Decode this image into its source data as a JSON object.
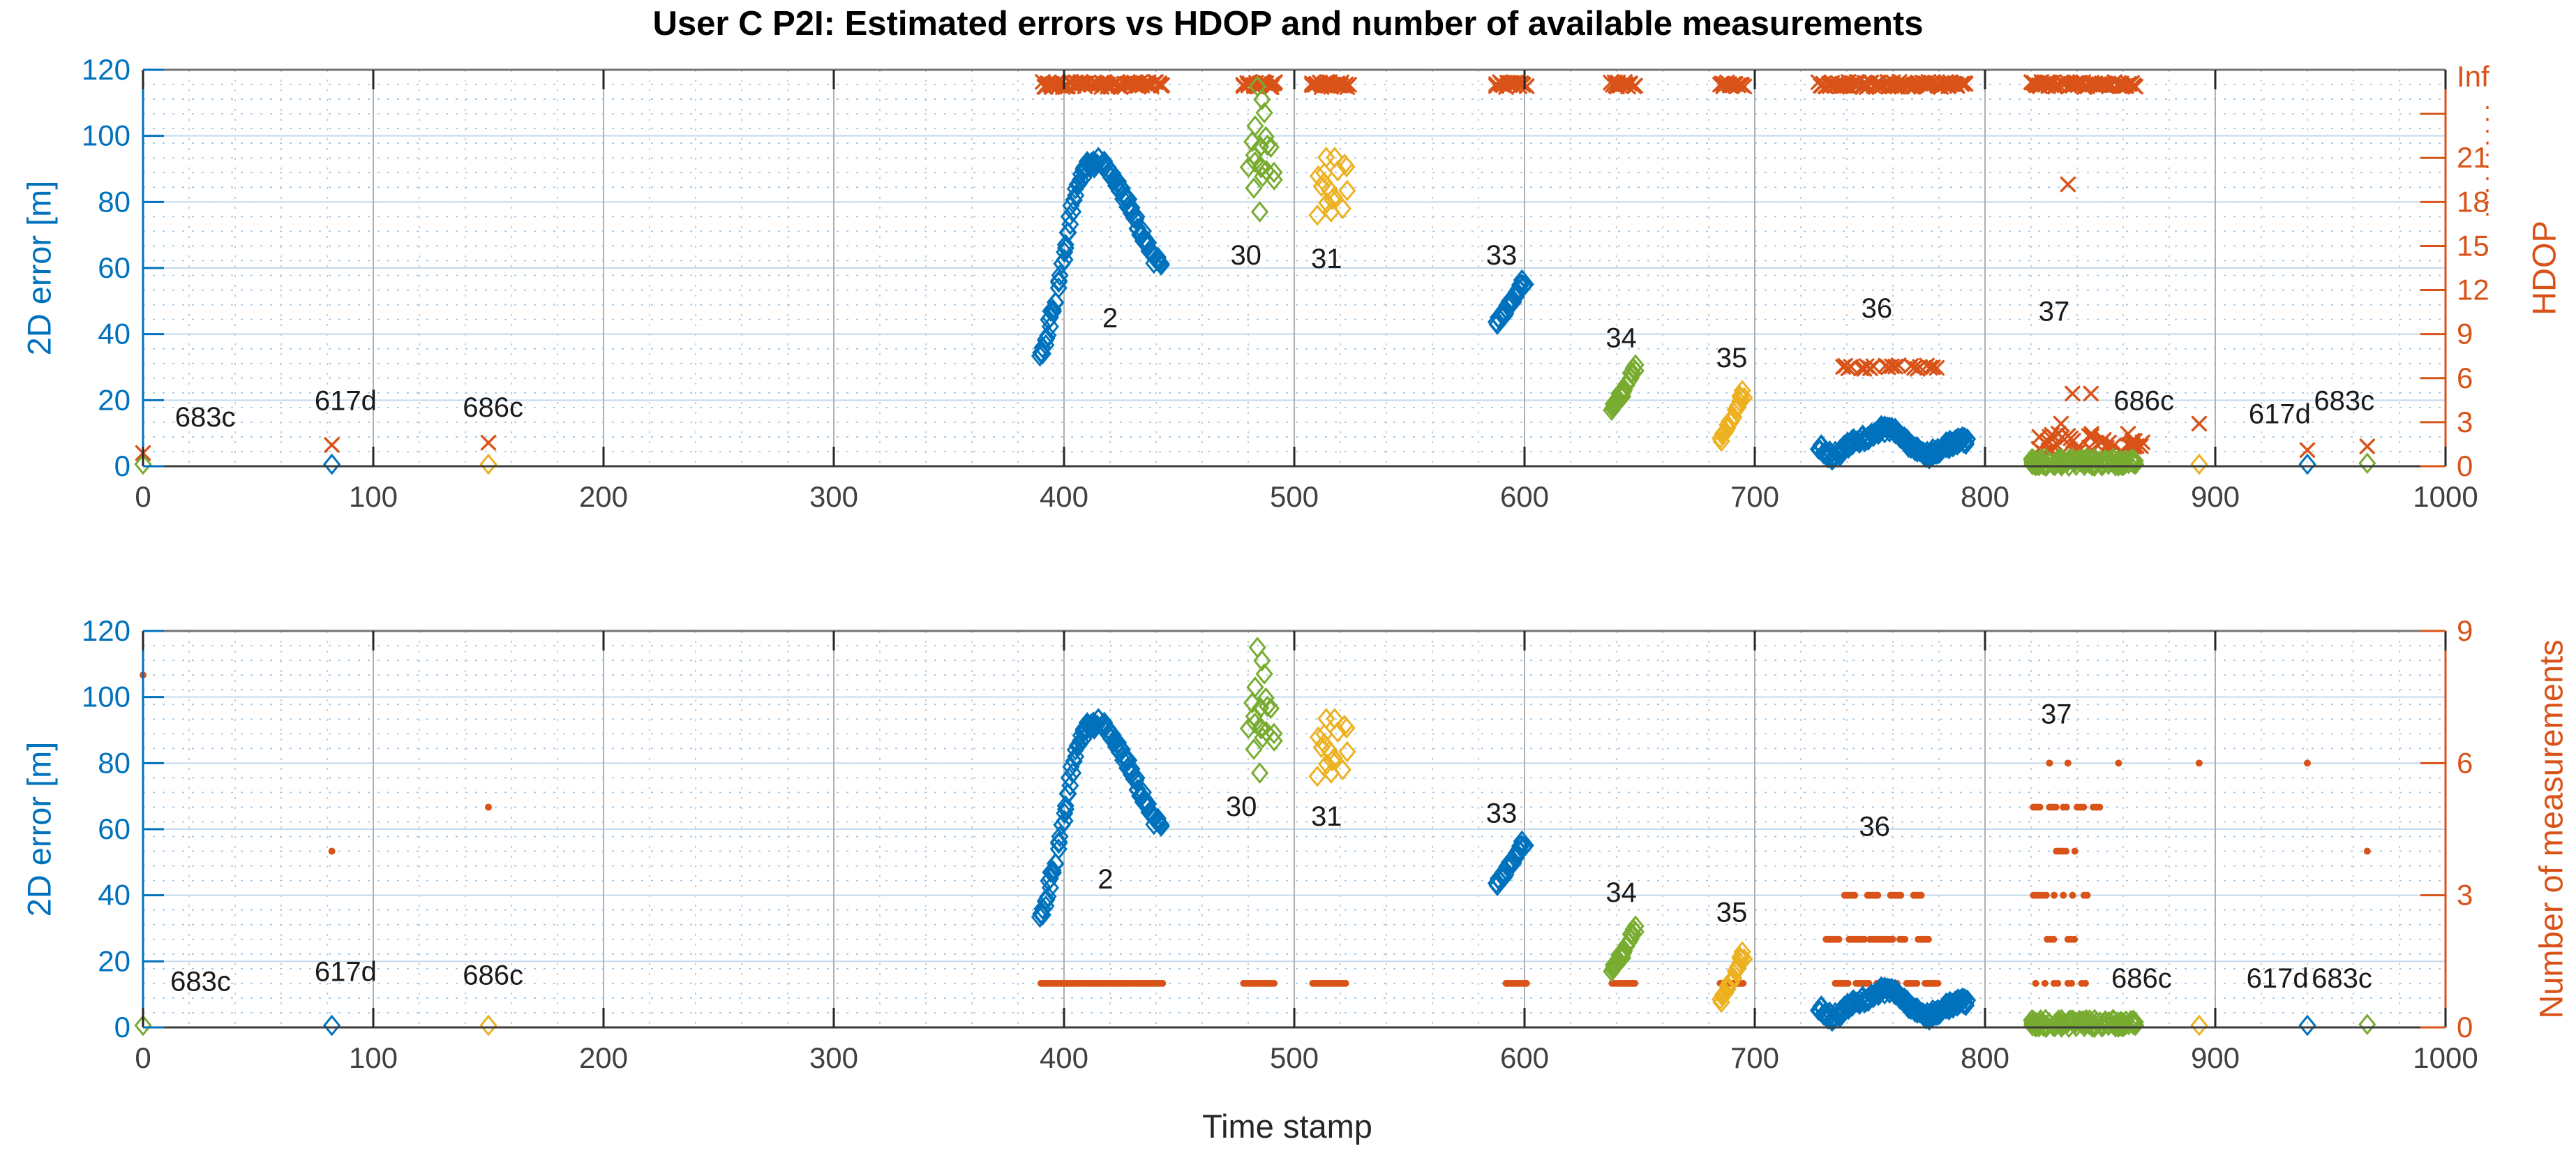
{
  "title": "User C P2I: Estimated errors vs HDOP and number of available measurements",
  "xlabel": "Time stamp",
  "colors": {
    "blue": "#0072BD",
    "orange": "#D95319",
    "green": "#77AC30",
    "yellow": "#EDB120",
    "tick_text": "#404040",
    "annotation_text": "#1a1a1a",
    "spine_top": "#737373",
    "spine_bottom": "#3c3c3c",
    "grid_major_h": "#c3d9ed",
    "grid_major_v": "#b0b0b0",
    "grid_minor_h": "#9fc6e6",
    "grid_minor_v": "#c9c9c9"
  },
  "shared_error_series": [
    {
      "name": "cluster-2",
      "marker": "diamond",
      "color": "blue",
      "kind": "path",
      "step": 0.9,
      "passes": 2,
      "jx": 0.5,
      "jy": 1.7,
      "pts": [
        [
          390,
          33
        ],
        [
          392,
          38
        ],
        [
          394,
          44
        ],
        [
          396,
          50
        ],
        [
          398,
          57
        ],
        [
          400,
          64
        ],
        [
          402,
          72
        ],
        [
          404,
          79
        ],
        [
          406,
          85
        ],
        [
          408,
          89
        ],
        [
          410,
          91
        ],
        [
          413,
          92
        ],
        [
          416,
          92
        ],
        [
          419,
          90
        ],
        [
          422,
          87
        ],
        [
          425,
          83
        ],
        [
          428,
          79
        ],
        [
          431,
          75
        ],
        [
          434,
          70
        ],
        [
          437,
          66
        ],
        [
          440,
          62
        ],
        [
          443,
          60
        ]
      ]
    },
    {
      "name": "cluster-30",
      "marker": "diamond",
      "color": "green",
      "kind": "blob",
      "t": [
        479,
        492
      ],
      "v": [
        84,
        101
      ],
      "n": 15
    },
    {
      "name": "cluster-30-outliers",
      "marker": "diamond",
      "color": "green",
      "kind": "points",
      "pts": [
        [
          484,
          115
        ],
        [
          486,
          111
        ],
        [
          487,
          107
        ],
        [
          483,
          103
        ],
        [
          485,
          77
        ]
      ]
    },
    {
      "name": "cluster-31",
      "marker": "diamond",
      "color": "yellow",
      "kind": "blob",
      "t": [
        509,
        523
      ],
      "v": [
        79,
        94
      ],
      "n": 15
    },
    {
      "name": "cluster-31-outliers",
      "marker": "diamond",
      "color": "yellow",
      "kind": "points",
      "pts": [
        [
          510,
          76
        ],
        [
          516,
          77
        ],
        [
          521,
          78
        ]
      ]
    },
    {
      "name": "cluster-33",
      "marker": "diamond",
      "color": "blue",
      "kind": "path",
      "step": 1.0,
      "passes": 2,
      "jx": 0.5,
      "jy": 1.4,
      "pts": [
        [
          588,
          43
        ],
        [
          591,
          46
        ],
        [
          594,
          50
        ],
        [
          597,
          53
        ],
        [
          600,
          56
        ]
      ]
    },
    {
      "name": "cluster-34",
      "marker": "diamond",
      "color": "green",
      "kind": "path",
      "step": 0.9,
      "passes": 2,
      "jx": 0.5,
      "jy": 1.2,
      "pts": [
        [
          638,
          17
        ],
        [
          641,
          20
        ],
        [
          644,
          24
        ],
        [
          648,
          30
        ]
      ]
    },
    {
      "name": "cluster-35",
      "marker": "diamond",
      "color": "yellow",
      "kind": "path",
      "step": 0.9,
      "passes": 2,
      "jx": 0.5,
      "jy": 1.2,
      "pts": [
        [
          685,
          8
        ],
        [
          688,
          12
        ],
        [
          691,
          16
        ],
        [
          695,
          22
        ]
      ]
    },
    {
      "name": "cluster-36",
      "marker": "diamond",
      "color": "blue",
      "kind": "path",
      "step": 0.8,
      "passes": 2,
      "jx": 0.4,
      "jy": 1.3,
      "pts": [
        [
          728,
          6
        ],
        [
          731,
          4
        ],
        [
          734,
          3
        ],
        [
          737,
          4
        ],
        [
          740,
          6
        ],
        [
          744,
          7.5
        ],
        [
          748,
          8.5
        ],
        [
          752,
          10
        ],
        [
          755,
          11
        ],
        [
          758,
          11.5
        ],
        [
          761,
          10.5
        ],
        [
          764,
          9
        ],
        [
          767,
          7
        ],
        [
          770,
          5.5
        ],
        [
          773,
          4
        ],
        [
          776,
          3.5
        ],
        [
          779,
          4.5
        ],
        [
          782,
          6
        ],
        [
          786,
          7
        ],
        [
          790,
          8
        ],
        [
          792,
          7.5
        ]
      ]
    },
    {
      "name": "cluster-37",
      "marker": "diamond",
      "color": "green",
      "kind": "blob",
      "t": [
        820,
        866
      ],
      "v": [
        0,
        2.4
      ],
      "n": 110
    },
    {
      "name": "singles-green",
      "marker": "diamond",
      "color": "green",
      "kind": "points",
      "pts": [
        [
          0,
          0.6
        ],
        [
          966,
          0.9
        ]
      ]
    },
    {
      "name": "singles-blue",
      "marker": "diamond",
      "color": "blue",
      "kind": "points",
      "pts": [
        [
          82,
          0.6
        ],
        [
          940,
          0.6
        ]
      ]
    },
    {
      "name": "singles-yellow",
      "marker": "diamond",
      "color": "yellow",
      "kind": "points",
      "pts": [
        [
          150,
          0.6
        ],
        [
          893,
          0.6
        ]
      ]
    }
  ],
  "chart_data": [
    {
      "id": "top",
      "type": "scatter",
      "ylabel_left": "2D error [m]",
      "ylabel_right": "HDOP",
      "xlim": [
        0,
        1000
      ],
      "ylim_left": [
        0,
        120
      ],
      "ylim_right": [
        0,
        27
      ],
      "grid": true,
      "xticks": [
        0,
        100,
        200,
        300,
        400,
        500,
        600,
        700,
        800,
        900,
        1000
      ],
      "yticks_left": [
        0,
        20,
        40,
        60,
        80,
        100,
        120
      ],
      "yticks_right": [
        0,
        3,
        6,
        9,
        12,
        15,
        18,
        21
      ],
      "yticks_right_unlabeled": [
        24
      ],
      "ytick_right_top_label": "Inf",
      "axis_break": true,
      "annotations": [
        {
          "text": "683c",
          "t": 27,
          "v": 15
        },
        {
          "text": "617d",
          "t": 88,
          "v": 20
        },
        {
          "text": "686c",
          "t": 152,
          "v": 18
        },
        {
          "text": "2",
          "t": 420,
          "v": 45
        },
        {
          "text": "30",
          "t": 479,
          "v": 64
        },
        {
          "text": "31",
          "t": 514,
          "v": 63
        },
        {
          "text": "33",
          "t": 590,
          "v": 64
        },
        {
          "text": "34",
          "t": 642,
          "v": 39
        },
        {
          "text": "35",
          "t": 690,
          "v": 33
        },
        {
          "text": "36",
          "t": 753,
          "v": 48
        },
        {
          "text": "37",
          "t": 830,
          "v": 47
        },
        {
          "text": "686c",
          "t": 869,
          "v": 20
        },
        {
          "text": "617d",
          "t": 928,
          "v": 16
        },
        {
          "text": "683c",
          "t": 956,
          "v": 20
        }
      ],
      "orange_series": [
        {
          "name": "hdop-inf-row",
          "marker": "x",
          "color": "orange",
          "kind": "row",
          "value_label": "Inf",
          "v": 26.0,
          "segments": [
            [
              391,
              444
            ],
            [
              478,
              492
            ],
            [
              508,
              524
            ],
            [
              588,
              601
            ],
            [
              638,
              649
            ],
            [
              685,
              696
            ],
            [
              728,
              792
            ],
            [
              820,
              866
            ]
          ],
          "step": 1.4,
          "passes": 2,
          "jx": 0.7,
          "jy": 0.18
        },
        {
          "name": "hdop-7-row",
          "marker": "x",
          "color": "orange",
          "kind": "row",
          "v": 6.75,
          "segments": [
            [
              738,
              742
            ],
            [
              746,
              752
            ],
            [
              757,
              763
            ],
            [
              768,
              772
            ],
            [
              775,
              779
            ]
          ],
          "step": 1.3,
          "passes": 1,
          "jx": 0.4,
          "jy": 0.12
        },
        {
          "name": "hdop-band-37",
          "marker": "x",
          "color": "orange",
          "kind": "blob",
          "t": [
            822,
            869
          ],
          "v": [
            0.9,
            2.3
          ],
          "n": 42
        },
        {
          "name": "hdop-singles",
          "marker": "x",
          "color": "orange",
          "kind": "points",
          "pts": [
            [
              0,
              0.9
            ],
            [
              82,
              1.45
            ],
            [
              150,
              1.6
            ],
            [
              836,
              19.2
            ],
            [
              833,
              2.9
            ],
            [
              838,
              4.95
            ],
            [
              846,
              4.95
            ],
            [
              893,
              2.9
            ],
            [
              940,
              1.1
            ],
            [
              966,
              1.35
            ]
          ]
        }
      ]
    },
    {
      "id": "bottom",
      "type": "scatter",
      "ylabel_left": "2D error [m]",
      "ylabel_right": "Number of measurements",
      "xlim": [
        0,
        1000
      ],
      "ylim_left": [
        0,
        120
      ],
      "ylim_right": [
        0,
        9
      ],
      "grid": true,
      "xticks": [
        0,
        100,
        200,
        300,
        400,
        500,
        600,
        700,
        800,
        900,
        1000
      ],
      "yticks_left": [
        0,
        20,
        40,
        60,
        80,
        100,
        120
      ],
      "yticks_right": [
        0,
        3,
        6,
        9
      ],
      "yticks_right_unlabeled": [],
      "ytick_right_top_label": null,
      "axis_break": false,
      "annotations": [
        {
          "text": "683c",
          "t": 25,
          "v": 14
        },
        {
          "text": "617d",
          "t": 88,
          "v": 17
        },
        {
          "text": "686c",
          "t": 152,
          "v": 16
        },
        {
          "text": "2",
          "t": 418,
          "v": 45
        },
        {
          "text": "30",
          "t": 477,
          "v": 67
        },
        {
          "text": "31",
          "t": 514,
          "v": 64
        },
        {
          "text": "33",
          "t": 590,
          "v": 65
        },
        {
          "text": "34",
          "t": 642,
          "v": 41
        },
        {
          "text": "35",
          "t": 690,
          "v": 35
        },
        {
          "text": "36",
          "t": 752,
          "v": 61
        },
        {
          "text": "37",
          "t": 831,
          "v": 95
        },
        {
          "text": "686c",
          "t": 868,
          "v": 15
        },
        {
          "text": "617d",
          "t": 927,
          "v": 15
        },
        {
          "text": "683c",
          "t": 955,
          "v": 15
        }
      ],
      "orange_series": [
        {
          "name": "nmeas-singles",
          "marker": "dot",
          "color": "orange",
          "kind": "points",
          "pts": [
            [
              0,
              8
            ],
            [
              82,
              4
            ],
            [
              150,
              5
            ],
            [
              893,
              6
            ],
            [
              940,
              6
            ],
            [
              966,
              4
            ]
          ]
        },
        {
          "name": "nmeas-1-rows",
          "marker": "dot",
          "color": "orange",
          "kind": "row",
          "v": 1,
          "segments": [
            [
              390,
              443
            ],
            [
              478,
              492
            ],
            [
              508,
              523
            ],
            [
              592,
              601
            ],
            [
              638,
              648
            ],
            [
              685,
              696
            ]
          ],
          "step": 1.1,
          "passes": 1,
          "jx": 0,
          "jy": 0
        },
        {
          "name": "nmeas-36-3",
          "marker": "dot",
          "color": "orange",
          "kind": "row",
          "v": 3,
          "segments": [
            [
              739,
              744
            ],
            [
              749,
              754
            ],
            [
              759,
              764
            ],
            [
              769,
              773
            ]
          ],
          "step": 1.1,
          "passes": 1,
          "jx": 0,
          "jy": 0
        },
        {
          "name": "nmeas-36-2",
          "marker": "dot",
          "color": "orange",
          "kind": "row",
          "v": 2,
          "segments": [
            [
              731,
              737
            ],
            [
              741,
              748
            ],
            [
              750,
              760
            ],
            [
              763,
              766
            ],
            [
              771,
              776
            ]
          ],
          "step": 1.1,
          "passes": 1,
          "jx": 0,
          "jy": 0
        },
        {
          "name": "nmeas-36-1",
          "marker": "dot",
          "color": "orange",
          "kind": "row",
          "v": 1,
          "segments": [
            [
              735,
              741
            ],
            [
              744,
              750
            ],
            [
              753,
              762
            ],
            [
              766,
              771
            ],
            [
              774,
              780
            ]
          ],
          "step": 1.1,
          "passes": 1,
          "jx": 0,
          "jy": 0
        },
        {
          "name": "nmeas-37-6",
          "marker": "dot",
          "color": "orange",
          "kind": "points",
          "pts": [
            [
              828,
              6
            ],
            [
              836,
              6
            ],
            [
              858,
              6
            ]
          ]
        },
        {
          "name": "nmeas-37-5",
          "marker": "dot",
          "color": "orange",
          "kind": "row",
          "v": 5,
          "segments": [
            [
              821,
              825
            ],
            [
              828,
              831
            ],
            [
              834,
              836
            ],
            [
              840,
              843
            ],
            [
              847,
              850
            ]
          ],
          "step": 1.4,
          "passes": 1,
          "jx": 0,
          "jy": 0
        },
        {
          "name": "nmeas-37-4",
          "marker": "dot",
          "color": "orange",
          "kind": "row",
          "v": 4,
          "segments": [
            [
              831,
              836
            ],
            [
              839,
              840
            ]
          ],
          "step": 1.4,
          "passes": 1,
          "jx": 0,
          "jy": 0
        },
        {
          "name": "nmeas-37-3",
          "marker": "dot",
          "color": "orange",
          "kind": "row",
          "v": 3,
          "segments": [
            [
              821,
              827
            ],
            [
              830,
              831
            ],
            [
              834,
              835
            ],
            [
              838,
              839
            ],
            [
              843,
              845
            ]
          ],
          "step": 1.4,
          "passes": 1,
          "jx": 0,
          "jy": 0
        },
        {
          "name": "nmeas-37-2",
          "marker": "dot",
          "color": "orange",
          "kind": "row",
          "v": 2,
          "segments": [
            [
              827,
              831
            ],
            [
              836,
              839
            ]
          ],
          "step": 1.4,
          "passes": 1,
          "jx": 0,
          "jy": 0
        },
        {
          "name": "nmeas-37-1",
          "marker": "dot",
          "color": "orange",
          "kind": "row",
          "v": 1,
          "segments": [
            [
              822,
              823
            ],
            [
              826,
              827
            ],
            [
              830,
              833
            ],
            [
              836,
              839
            ],
            [
              842,
              844
            ]
          ],
          "step": 1.6,
          "passes": 1,
          "jx": 0,
          "jy": 0
        }
      ]
    }
  ]
}
